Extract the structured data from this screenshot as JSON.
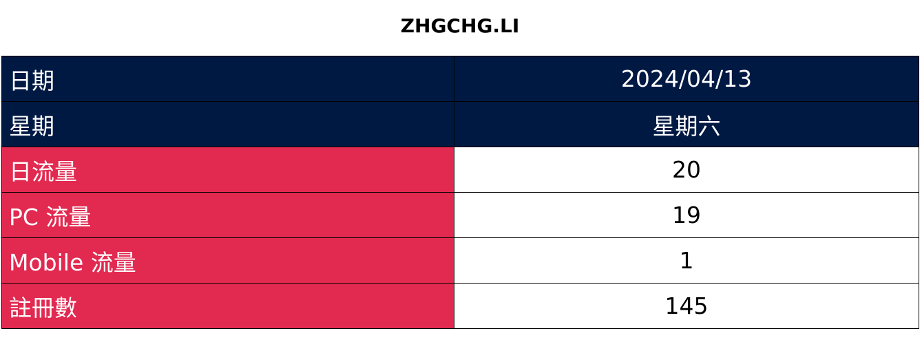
{
  "title": "ZHGCHG.LI",
  "rows": [
    {
      "label": "日期",
      "value": "2024/04/13"
    },
    {
      "label": "星期",
      "value": "星期六"
    },
    {
      "label": "日流量",
      "value": "20"
    },
    {
      "label": "PC 流量",
      "value": "19"
    },
    {
      "label": "Mobile 流量",
      "value": "1"
    },
    {
      "label": "註冊數",
      "value": "145"
    }
  ],
  "colors": {
    "header_bg": "#001943",
    "label_bg": "#e22950",
    "header_text": "#ffffff",
    "value_text": "#000000"
  }
}
